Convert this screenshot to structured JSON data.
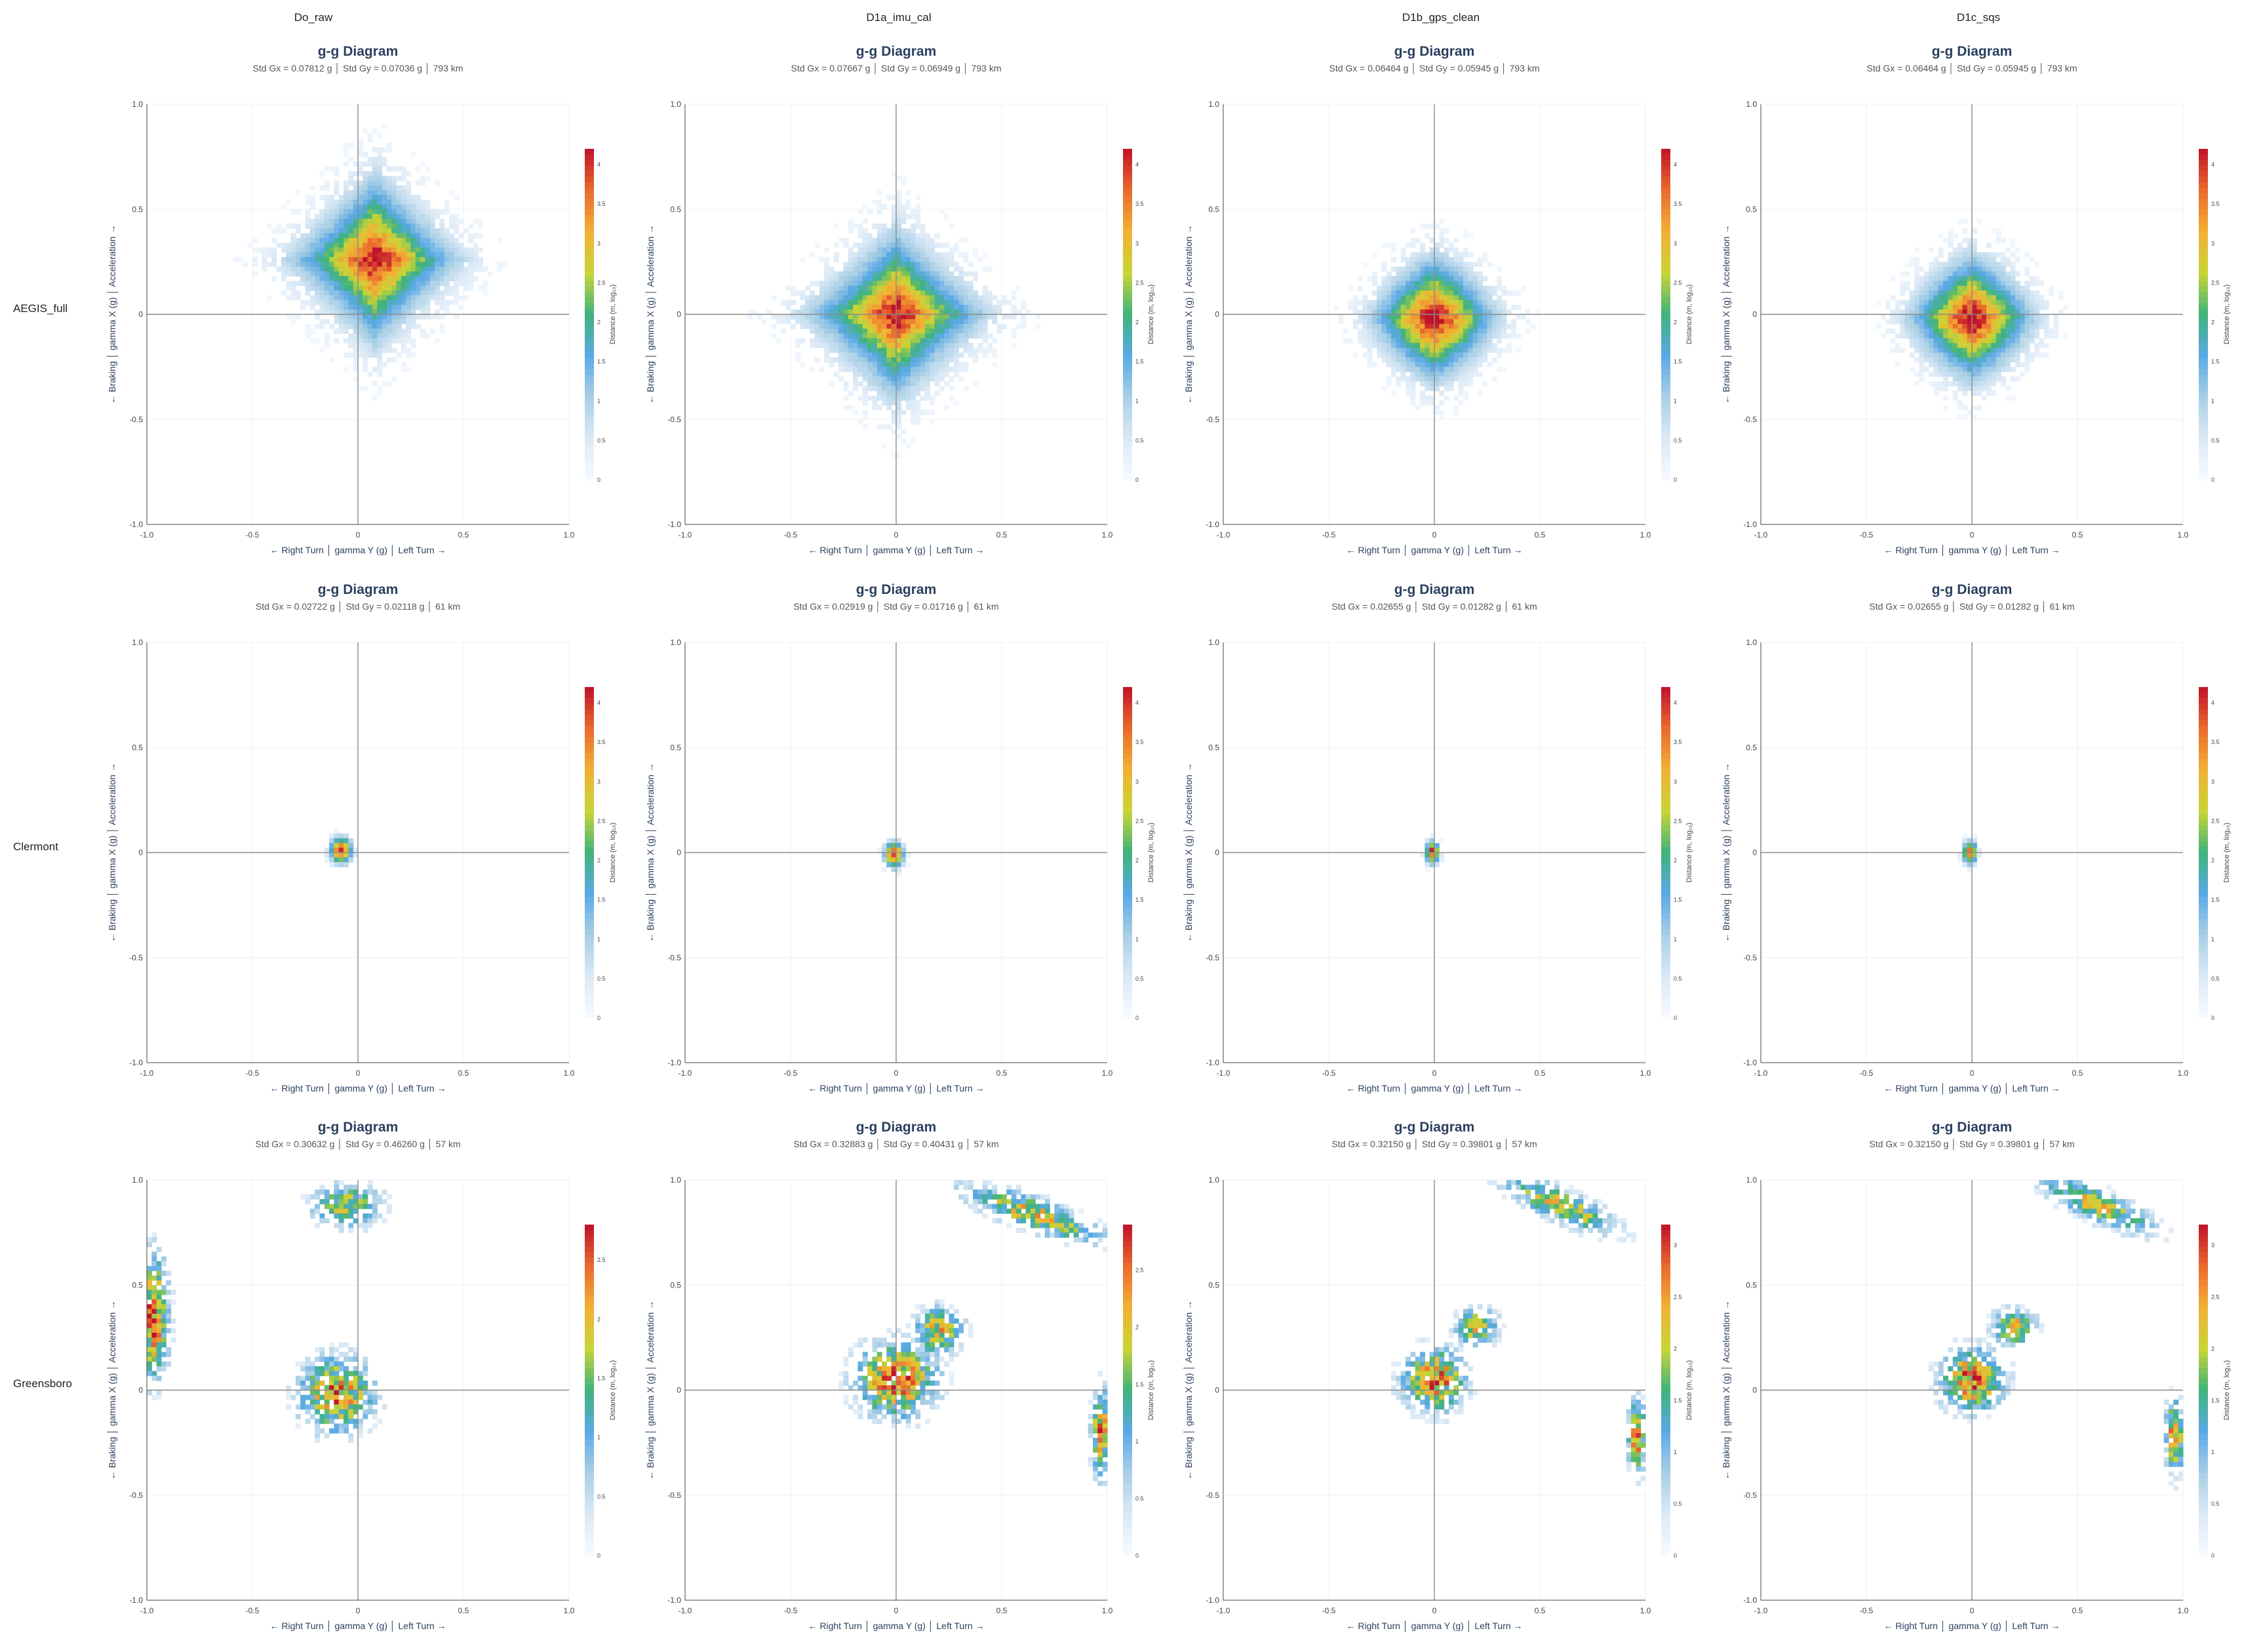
{
  "columns": [
    "Do_raw",
    "D1a_imu_cal",
    "D1b_gps_clean",
    "D1c_sqs"
  ],
  "rows": [
    "AEGIS_full",
    "Clermont",
    "Greensboro"
  ],
  "panel_title": "g-g Diagram",
  "axis_titles": {
    "x": "← Right Turn │ gamma Y (g) │ Left Turn →",
    "y": "← Braking │ gamma X (g) │ Acceleration →"
  },
  "tick_labels": [
    "-1.0",
    "-0.5",
    "0",
    "0.5",
    "1.0"
  ],
  "colorbar_title": "Distance (m, log₁₀)",
  "colorscale": [
    "#f7fbff",
    "#dbe9f6",
    "#a9cfe5",
    "#5aa9e6",
    "#3fb37a",
    "#c9d437",
    "#f2b134",
    "#ea6a2e",
    "#c0112a"
  ],
  "chart_data": [
    {
      "type": "heatmap",
      "title": "g-g Diagram",
      "row": "AEGIS_full",
      "column": "Do_raw",
      "stats": "Std Gx = 0.07812 g │ Std Gy = 0.07036 g │ 793 km",
      "xlabel": "← Right Turn │ gamma Y (g) │ Left Turn →",
      "ylabel": "← Braking │ gamma X (g) │ Acceleration →",
      "xlim": [
        -1,
        1
      ],
      "ylim": [
        -1,
        1
      ],
      "colorbar_max": 4.2,
      "colorbar_ticks": [
        "0",
        "0.5",
        "1",
        "1.5",
        "2",
        "2.5",
        "3",
        "3.5",
        "4"
      ],
      "clusters": [
        {
          "cx": 0.08,
          "cy": 0.26,
          "sx": 0.17,
          "sy": 0.17,
          "peak": 4.2,
          "shape": "diamond"
        }
      ]
    },
    {
      "type": "heatmap",
      "title": "g-g Diagram",
      "row": "AEGIS_full",
      "column": "D1a_imu_cal",
      "stats": "Std Gx = 0.07667 g │ Std Gy = 0.06949 g │ 793 km",
      "xlabel": "← Right Turn │ gamma Y (g) │ Left Turn →",
      "ylabel": "← Braking │ gamma X (g) │ Acceleration →",
      "xlim": [
        -1,
        1
      ],
      "ylim": [
        -1,
        1
      ],
      "colorbar_max": 4.2,
      "colorbar_ticks": [
        "0",
        "0.5",
        "1",
        "1.5",
        "2",
        "2.5",
        "3",
        "3.5",
        "4"
      ],
      "clusters": [
        {
          "cx": 0.0,
          "cy": 0.0,
          "sx": 0.18,
          "sy": 0.17,
          "peak": 4.2,
          "shape": "diamond"
        }
      ]
    },
    {
      "type": "heatmap",
      "title": "g-g Diagram",
      "row": "AEGIS_full",
      "column": "D1b_gps_clean",
      "stats": "Std Gx = 0.06464 g │ Std Gy = 0.05945 g │ 793 km",
      "xlabel": "← Right Turn │ gamma Y (g) │ Left Turn →",
      "ylabel": "← Braking │ gamma X (g) │ Acceleration →",
      "xlim": [
        -1,
        1
      ],
      "ylim": [
        -1,
        1
      ],
      "colorbar_max": 4.2,
      "colorbar_ticks": [
        "0",
        "0.5",
        "1",
        "1.5",
        "2",
        "2.5",
        "3",
        "3.5",
        "4"
      ],
      "clusters": [
        {
          "cx": 0.0,
          "cy": -0.02,
          "sx": 0.14,
          "sy": 0.14,
          "peak": 4.2,
          "shape": "star"
        }
      ]
    },
    {
      "type": "heatmap",
      "title": "g-g Diagram",
      "row": "AEGIS_full",
      "column": "D1c_sqs",
      "stats": "Std Gx = 0.06464 g │ Std Gy = 0.05945 g │ 793 km",
      "xlabel": "← Right Turn │ gamma Y (g) │ Left Turn →",
      "ylabel": "← Braking │ gamma X (g) │ Acceleration →",
      "xlim": [
        -1,
        1
      ],
      "ylim": [
        -1,
        1
      ],
      "colorbar_max": 4.2,
      "colorbar_ticks": [
        "0",
        "0.5",
        "1",
        "1.5",
        "2",
        "2.5",
        "3",
        "3.5",
        "4"
      ],
      "clusters": [
        {
          "cx": 0.0,
          "cy": -0.02,
          "sx": 0.14,
          "sy": 0.14,
          "peak": 4.2,
          "shape": "star"
        }
      ]
    },
    {
      "type": "heatmap",
      "title": "g-g Diagram",
      "row": "Clermont",
      "column": "Do_raw",
      "stats": "Std Gx = 0.02722 g │ Std Gy = 0.02118 g │ 61 km",
      "xlabel": "← Right Turn │ gamma Y (g) │ Left Turn →",
      "ylabel": "← Braking │ gamma X (g) │ Acceleration →",
      "xlim": [
        -1,
        1
      ],
      "ylim": [
        -1,
        1
      ],
      "colorbar_max": 4.2,
      "colorbar_ticks": [
        "0",
        "0.5",
        "1",
        "1.5",
        "2",
        "2.5",
        "3",
        "3.5",
        "4"
      ],
      "clusters": [
        {
          "cx": -0.08,
          "cy": 0.01,
          "sx": 0.035,
          "sy": 0.04,
          "peak": 4.0,
          "shape": "blob"
        }
      ]
    },
    {
      "type": "heatmap",
      "title": "g-g Diagram",
      "row": "Clermont",
      "column": "D1a_imu_cal",
      "stats": "Std Gx = 0.02919 g │ Std Gy = 0.01716 g │ 61 km",
      "xlabel": "← Right Turn │ gamma Y (g) │ Left Turn →",
      "ylabel": "← Braking │ gamma X (g) │ Acceleration →",
      "xlim": [
        -1,
        1
      ],
      "ylim": [
        -1,
        1
      ],
      "colorbar_max": 4.2,
      "colorbar_ticks": [
        "0",
        "0.5",
        "1",
        "1.5",
        "2",
        "2.5",
        "3",
        "3.5",
        "4"
      ],
      "clusters": [
        {
          "cx": -0.01,
          "cy": -0.01,
          "sx": 0.03,
          "sy": 0.04,
          "peak": 4.0,
          "shape": "blob"
        }
      ]
    },
    {
      "type": "heatmap",
      "title": "g-g Diagram",
      "row": "Clermont",
      "column": "D1b_gps_clean",
      "stats": "Std Gx = 0.02655 g │ Std Gy = 0.01282 g │ 61 km",
      "xlabel": "← Right Turn │ gamma Y (g) │ Left Turn →",
      "ylabel": "← Braking │ gamma X (g) │ Acceleration →",
      "xlim": [
        -1,
        1
      ],
      "ylim": [
        -1,
        1
      ],
      "colorbar_max": 4.2,
      "colorbar_ticks": [
        "0",
        "0.5",
        "1",
        "1.5",
        "2",
        "2.5",
        "3",
        "3.5",
        "4"
      ],
      "clusters": [
        {
          "cx": -0.01,
          "cy": 0.0,
          "sx": 0.022,
          "sy": 0.035,
          "peak": 4.0,
          "shape": "blob"
        }
      ]
    },
    {
      "type": "heatmap",
      "title": "g-g Diagram",
      "row": "Clermont",
      "column": "D1c_sqs",
      "stats": "Std Gx = 0.02655 g │ Std Gy = 0.01282 g │ 61 km",
      "xlabel": "← Right Turn │ gamma Y (g) │ Left Turn →",
      "ylabel": "← Braking │ gamma X (g) │ Acceleration →",
      "xlim": [
        -1,
        1
      ],
      "ylim": [
        -1,
        1
      ],
      "colorbar_max": 4.2,
      "colorbar_ticks": [
        "0",
        "0.5",
        "1",
        "1.5",
        "2",
        "2.5",
        "3",
        "3.5",
        "4"
      ],
      "clusters": [
        {
          "cx": -0.01,
          "cy": 0.0,
          "sx": 0.022,
          "sy": 0.035,
          "peak": 4.0,
          "shape": "blob"
        }
      ]
    },
    {
      "type": "heatmap",
      "title": "g-g Diagram",
      "row": "Greensboro",
      "column": "Do_raw",
      "stats": "Std Gx = 0.30632 g │ Std Gy = 0.46260 g │ 57 km",
      "xlabel": "← Right Turn │ gamma Y (g) │ Left Turn →",
      "ylabel": "← Braking │ gamma X (g) │ Acceleration →",
      "xlim": [
        -1,
        1
      ],
      "ylim": [
        -1,
        1
      ],
      "colorbar_max": 2.8,
      "colorbar_ticks": [
        "0",
        "0.5",
        "1",
        "1.5",
        "2",
        "2.5"
      ],
      "clusters": [
        {
          "cx": -0.1,
          "cy": -0.02,
          "sx": 0.12,
          "sy": 0.12,
          "peak": 2.6,
          "shape": "sparse"
        },
        {
          "cx": -0.97,
          "cy": 0.35,
          "sx": 0.05,
          "sy": 0.2,
          "peak": 2.8,
          "shape": "sparse"
        },
        {
          "cx": -0.05,
          "cy": 0.88,
          "sx": 0.12,
          "sy": 0.07,
          "peak": 2.0,
          "shape": "sparse"
        }
      ]
    },
    {
      "type": "heatmap",
      "title": "g-g Diagram",
      "row": "Greensboro",
      "column": "D1a_imu_cal",
      "stats": "Std Gx = 0.32883 g │ Std Gy = 0.40431 g │ 57 km",
      "xlabel": "← Right Turn │ gamma Y (g) │ Left Turn →",
      "ylabel": "← Braking │ gamma X (g) │ Acceleration →",
      "xlim": [
        -1,
        1
      ],
      "ylim": [
        -1,
        1
      ],
      "colorbar_max": 2.9,
      "colorbar_ticks": [
        "0",
        "0.5",
        "1",
        "1.5",
        "2",
        "2.5"
      ],
      "clusters": [
        {
          "cx": 0.0,
          "cy": 0.05,
          "sx": 0.13,
          "sy": 0.12,
          "peak": 2.9,
          "shape": "sparse"
        },
        {
          "cx": 0.2,
          "cy": 0.28,
          "sx": 0.08,
          "sy": 0.08,
          "peak": 2.3,
          "shape": "sparse"
        },
        {
          "cx": 0.65,
          "cy": 0.84,
          "sx": 0.12,
          "sy": 0.05,
          "peak": 2.4,
          "shape": "diag"
        },
        {
          "cx": 0.97,
          "cy": -0.2,
          "sx": 0.03,
          "sy": 0.14,
          "peak": 2.7,
          "shape": "sparse"
        }
      ]
    },
    {
      "type": "heatmap",
      "title": "g-g Diagram",
      "row": "Greensboro",
      "column": "D1b_gps_clean",
      "stats": "Std Gx = 0.32150 g │ Std Gy = 0.39801 g │ 57 km",
      "xlabel": "← Right Turn │ gamma Y (g) │ Left Turn →",
      "ylabel": "← Braking │ gamma X (g) │ Acceleration →",
      "xlim": [
        -1,
        1
      ],
      "ylim": [
        -1,
        1
      ],
      "colorbar_max": 3.2,
      "colorbar_ticks": [
        "0",
        "0.5",
        "1",
        "1.5",
        "2",
        "2.5",
        "3"
      ],
      "clusters": [
        {
          "cx": 0.0,
          "cy": 0.05,
          "sx": 0.1,
          "sy": 0.1,
          "peak": 3.2,
          "shape": "sparse"
        },
        {
          "cx": 0.2,
          "cy": 0.3,
          "sx": 0.07,
          "sy": 0.06,
          "peak": 2.6,
          "shape": "sparse"
        },
        {
          "cx": 0.6,
          "cy": 0.88,
          "sx": 0.1,
          "sy": 0.05,
          "peak": 2.5,
          "shape": "diag"
        },
        {
          "cx": 0.96,
          "cy": -0.22,
          "sx": 0.03,
          "sy": 0.12,
          "peak": 3.0,
          "shape": "sparse"
        }
      ]
    },
    {
      "type": "heatmap",
      "title": "g-g Diagram",
      "row": "Greensboro",
      "column": "D1c_sqs",
      "stats": "Std Gx = 0.32150 g │ Std Gy = 0.39801 g │ 57 km",
      "xlabel": "← Right Turn │ gamma Y (g) │ Left Turn →",
      "ylabel": "← Braking │ gamma X (g) │ Acceleration →",
      "xlim": [
        -1,
        1
      ],
      "ylim": [
        -1,
        1
      ],
      "colorbar_max": 3.2,
      "colorbar_ticks": [
        "0",
        "0.5",
        "1",
        "1.5",
        "2",
        "2.5",
        "3"
      ],
      "clusters": [
        {
          "cx": 0.0,
          "cy": 0.05,
          "sx": 0.1,
          "sy": 0.1,
          "peak": 3.2,
          "shape": "sparse"
        },
        {
          "cx": 0.2,
          "cy": 0.3,
          "sx": 0.07,
          "sy": 0.06,
          "peak": 2.6,
          "shape": "sparse"
        },
        {
          "cx": 0.6,
          "cy": 0.88,
          "sx": 0.1,
          "sy": 0.05,
          "peak": 2.5,
          "shape": "diag"
        },
        {
          "cx": 0.96,
          "cy": -0.22,
          "sx": 0.03,
          "sy": 0.12,
          "peak": 3.0,
          "shape": "sparse"
        }
      ]
    }
  ]
}
